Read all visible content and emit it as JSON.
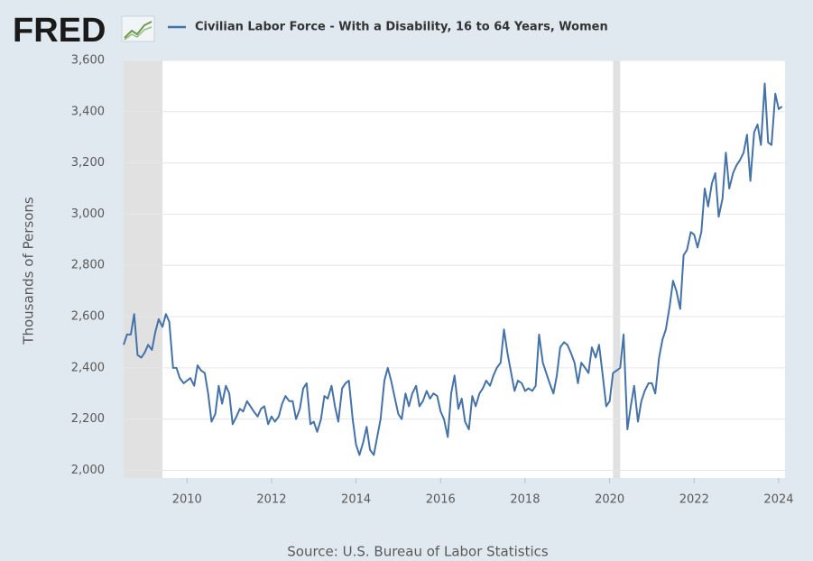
{
  "chart_data": {
    "type": "line",
    "logo": "FRED",
    "y_label": "Thousands of Persons",
    "source": "Source: U.S. Bureau of Labor Statistics",
    "grid": true,
    "xlim": [
      2008.5,
      2024.15
    ],
    "xticks": [
      2010,
      2012,
      2014,
      2016,
      2018,
      2020,
      2022,
      2024
    ],
    "ylim": [
      1970,
      3600
    ],
    "yticks": [
      {
        "value": 2000,
        "label": "2,000"
      },
      {
        "value": 2200,
        "label": "2,200"
      },
      {
        "value": 2400,
        "label": "2,400"
      },
      {
        "value": 2600,
        "label": "2,600"
      },
      {
        "value": 2800,
        "label": "2,800"
      },
      {
        "value": 3000,
        "label": "3,000"
      },
      {
        "value": 3200,
        "label": "3,200"
      },
      {
        "value": 3400,
        "label": "3,400"
      },
      {
        "value": 3600,
        "label": "3,600"
      }
    ],
    "recessions": [
      [
        2008.5,
        2009.42
      ],
      [
        2020.08,
        2020.25
      ]
    ],
    "recession_color": "#e1e1e1",
    "x": [
      2008.5,
      2008.58,
      2008.67,
      2008.75,
      2008.83,
      2008.92,
      2009,
      2009.08,
      2009.17,
      2009.25,
      2009.33,
      2009.42,
      2009.5,
      2009.58,
      2009.67,
      2009.75,
      2009.83,
      2009.92,
      2010,
      2010.08,
      2010.17,
      2010.25,
      2010.33,
      2010.42,
      2010.5,
      2010.58,
      2010.67,
      2010.75,
      2010.83,
      2010.92,
      2011,
      2011.08,
      2011.17,
      2011.25,
      2011.33,
      2011.42,
      2011.5,
      2011.58,
      2011.67,
      2011.75,
      2011.83,
      2011.92,
      2012,
      2012.08,
      2012.17,
      2012.25,
      2012.33,
      2012.42,
      2012.5,
      2012.58,
      2012.67,
      2012.75,
      2012.83,
      2012.92,
      2013,
      2013.08,
      2013.17,
      2013.25,
      2013.33,
      2013.42,
      2013.5,
      2013.58,
      2013.67,
      2013.75,
      2013.83,
      2013.92,
      2014,
      2014.08,
      2014.17,
      2014.25,
      2014.33,
      2014.42,
      2014.5,
      2014.58,
      2014.67,
      2014.75,
      2014.83,
      2014.92,
      2015,
      2015.08,
      2015.17,
      2015.25,
      2015.33,
      2015.42,
      2015.5,
      2015.58,
      2015.67,
      2015.75,
      2015.83,
      2015.92,
      2016,
      2016.08,
      2016.17,
      2016.25,
      2016.33,
      2016.42,
      2016.5,
      2016.58,
      2016.67,
      2016.75,
      2016.83,
      2016.92,
      2017,
      2017.08,
      2017.17,
      2017.25,
      2017.33,
      2017.42,
      2017.5,
      2017.58,
      2017.67,
      2017.75,
      2017.83,
      2017.92,
      2018,
      2018.08,
      2018.17,
      2018.25,
      2018.33,
      2018.42,
      2018.5,
      2018.58,
      2018.67,
      2018.75,
      2018.83,
      2018.92,
      2019,
      2019.08,
      2019.17,
      2019.25,
      2019.33,
      2019.42,
      2019.5,
      2019.58,
      2019.67,
      2019.75,
      2019.83,
      2019.92,
      2020,
      2020.08,
      2020.17,
      2020.25,
      2020.33,
      2020.42,
      2020.5,
      2020.58,
      2020.67,
      2020.75,
      2020.83,
      2020.92,
      2021,
      2021.08,
      2021.17,
      2021.25,
      2021.33,
      2021.42,
      2021.5,
      2021.58,
      2021.67,
      2021.75,
      2021.83,
      2021.92,
      2022,
      2022.08,
      2022.17,
      2022.25,
      2022.33,
      2022.42,
      2022.5,
      2022.58,
      2022.67,
      2022.75,
      2022.83,
      2022.92,
      2023,
      2023.08,
      2023.17,
      2023.25,
      2023.33,
      2023.42,
      2023.5,
      2023.58,
      2023.67,
      2023.75,
      2023.83,
      2023.92,
      2024,
      2024.08
    ],
    "series": [
      {
        "name": "Civilian Labor Force - With a Disability, 16 to 64 Years, Women",
        "color": "#4572a7",
        "values": [
          2490,
          2530,
          2530,
          2610,
          2450,
          2440,
          2460,
          2490,
          2470,
          2540,
          2590,
          2560,
          2610,
          2580,
          2400,
          2400,
          2360,
          2340,
          2350,
          2360,
          2330,
          2410,
          2390,
          2380,
          2300,
          2190,
          2220,
          2330,
          2260,
          2330,
          2300,
          2180,
          2210,
          2240,
          2230,
          2270,
          2250,
          2230,
          2210,
          2240,
          2250,
          2180,
          2210,
          2190,
          2210,
          2260,
          2290,
          2270,
          2270,
          2200,
          2240,
          2320,
          2340,
          2180,
          2190,
          2150,
          2200,
          2290,
          2280,
          2330,
          2250,
          2190,
          2320,
          2340,
          2350,
          2200,
          2100,
          2060,
          2110,
          2170,
          2080,
          2060,
          2130,
          2200,
          2350,
          2400,
          2350,
          2280,
          2220,
          2200,
          2300,
          2250,
          2300,
          2330,
          2250,
          2270,
          2310,
          2280,
          2300,
          2290,
          2230,
          2200,
          2130,
          2300,
          2370,
          2240,
          2280,
          2190,
          2160,
          2290,
          2250,
          2300,
          2320,
          2350,
          2330,
          2370,
          2400,
          2420,
          2550,
          2460,
          2380,
          2310,
          2350,
          2340,
          2310,
          2320,
          2310,
          2330,
          2530,
          2420,
          2380,
          2340,
          2300,
          2370,
          2480,
          2500,
          2490,
          2460,
          2420,
          2340,
          2420,
          2400,
          2380,
          2480,
          2440,
          2490,
          2380,
          2250,
          2270,
          2380,
          2390,
          2400,
          2530,
          2160,
          2250,
          2330,
          2190,
          2270,
          2310,
          2340,
          2340,
          2300,
          2440,
          2510,
          2550,
          2640,
          2740,
          2700,
          2630,
          2840,
          2860,
          2930,
          2920,
          2870,
          2930,
          3100,
          3030,
          3120,
          3160,
          2990,
          3060,
          3240,
          3100,
          3160,
          3190,
          3210,
          3240,
          3310,
          3130,
          3320,
          3350,
          3270,
          3510,
          3280,
          3270,
          3470,
          3410,
          3420
        ]
      }
    ]
  }
}
